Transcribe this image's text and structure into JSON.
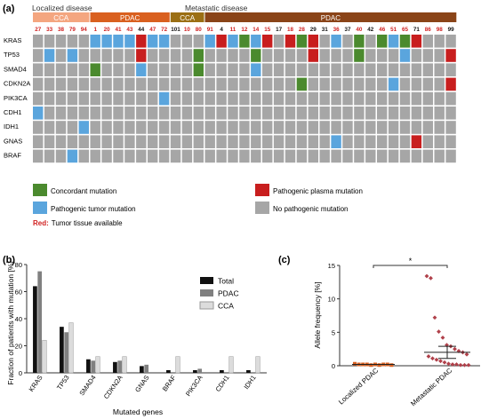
{
  "panel_a": {
    "label": "(a)",
    "group_labels": {
      "localized": "Localized disease",
      "metastatic": "Metastatic disease"
    },
    "cohorts": [
      {
        "name": "CCA",
        "color": "#f4a680",
        "start": 0,
        "end": 5
      },
      {
        "name": "PDAC",
        "color": "#d9601f",
        "start": 5,
        "end": 12
      },
      {
        "name": "CCA",
        "color": "#9b6f14",
        "start": 12,
        "end": 15
      },
      {
        "name": "PDAC",
        "color": "#8a4418",
        "start": 15,
        "end": 40
      }
    ],
    "patients": [
      {
        "id": "27",
        "red": true
      },
      {
        "id": "33",
        "red": true
      },
      {
        "id": "38",
        "red": true
      },
      {
        "id": "79",
        "red": true
      },
      {
        "id": "94",
        "red": true
      },
      {
        "id": "1",
        "red": true
      },
      {
        "id": "20",
        "red": true
      },
      {
        "id": "41",
        "red": true
      },
      {
        "id": "43",
        "red": true
      },
      {
        "id": "44",
        "red": false
      },
      {
        "id": "47",
        "red": true
      },
      {
        "id": "72",
        "red": true
      },
      {
        "id": "101",
        "red": false
      },
      {
        "id": "10",
        "red": true
      },
      {
        "id": "80",
        "red": true
      },
      {
        "id": "91",
        "red": true
      },
      {
        "id": "4",
        "red": false
      },
      {
        "id": "11",
        "red": true
      },
      {
        "id": "12",
        "red": true
      },
      {
        "id": "14",
        "red": true
      },
      {
        "id": "15",
        "red": true
      },
      {
        "id": "17",
        "red": false
      },
      {
        "id": "18",
        "red": true
      },
      {
        "id": "28",
        "red": true
      },
      {
        "id": "29",
        "red": false
      },
      {
        "id": "31",
        "red": false
      },
      {
        "id": "36",
        "red": true
      },
      {
        "id": "37",
        "red": false
      },
      {
        "id": "40",
        "red": true
      },
      {
        "id": "42",
        "red": false
      },
      {
        "id": "46",
        "red": true
      },
      {
        "id": "51",
        "red": true
      },
      {
        "id": "65",
        "red": true
      },
      {
        "id": "71",
        "red": false
      },
      {
        "id": "86",
        "red": true
      },
      {
        "id": "98",
        "red": true
      },
      {
        "id": "99",
        "red": false
      }
    ],
    "genes": [
      "KRAS",
      "TP53",
      "SMAD4",
      "CDKN2A",
      "PIK3CA",
      "CDH1",
      "IDH1",
      "GNAS",
      "BRAF"
    ],
    "mutations": [
      {
        "gene": 0,
        "col": 5,
        "type": "T"
      },
      {
        "gene": 0,
        "col": 6,
        "type": "T"
      },
      {
        "gene": 0,
        "col": 7,
        "type": "T"
      },
      {
        "gene": 0,
        "col": 8,
        "type": "T"
      },
      {
        "gene": 0,
        "col": 9,
        "type": "P"
      },
      {
        "gene": 0,
        "col": 10,
        "type": "T"
      },
      {
        "gene": 0,
        "col": 11,
        "type": "T"
      },
      {
        "gene": 0,
        "col": 15,
        "type": "T"
      },
      {
        "gene": 0,
        "col": 16,
        "type": "P"
      },
      {
        "gene": 0,
        "col": 17,
        "type": "T"
      },
      {
        "gene": 0,
        "col": 18,
        "type": "C"
      },
      {
        "gene": 0,
        "col": 19,
        "type": "T"
      },
      {
        "gene": 0,
        "col": 20,
        "type": "P"
      },
      {
        "gene": 0,
        "col": 22,
        "type": "P"
      },
      {
        "gene": 0,
        "col": 23,
        "type": "C"
      },
      {
        "gene": 0,
        "col": 24,
        "type": "P"
      },
      {
        "gene": 0,
        "col": 26,
        "type": "T"
      },
      {
        "gene": 0,
        "col": 28,
        "type": "C"
      },
      {
        "gene": 0,
        "col": 30,
        "type": "C"
      },
      {
        "gene": 0,
        "col": 31,
        "type": "T"
      },
      {
        "gene": 0,
        "col": 32,
        "type": "C"
      },
      {
        "gene": 0,
        "col": 33,
        "type": "P"
      },
      {
        "gene": 1,
        "col": 1,
        "type": "T"
      },
      {
        "gene": 1,
        "col": 3,
        "type": "T"
      },
      {
        "gene": 1,
        "col": 9,
        "type": "P"
      },
      {
        "gene": 1,
        "col": 14,
        "type": "C"
      },
      {
        "gene": 1,
        "col": 19,
        "type": "C"
      },
      {
        "gene": 1,
        "col": 24,
        "type": "P"
      },
      {
        "gene": 1,
        "col": 28,
        "type": "C"
      },
      {
        "gene": 1,
        "col": 32,
        "type": "T"
      },
      {
        "gene": 1,
        "col": 36,
        "type": "P"
      },
      {
        "gene": 2,
        "col": 5,
        "type": "C"
      },
      {
        "gene": 2,
        "col": 9,
        "type": "T"
      },
      {
        "gene": 2,
        "col": 14,
        "type": "C"
      },
      {
        "gene": 2,
        "col": 19,
        "type": "T"
      },
      {
        "gene": 3,
        "col": 23,
        "type": "C"
      },
      {
        "gene": 3,
        "col": 31,
        "type": "T"
      },
      {
        "gene": 3,
        "col": 36,
        "type": "P"
      },
      {
        "gene": 4,
        "col": 11,
        "type": "T"
      },
      {
        "gene": 5,
        "col": 0,
        "type": "T"
      },
      {
        "gene": 6,
        "col": 4,
        "type": "T"
      },
      {
        "gene": 7,
        "col": 26,
        "type": "T"
      },
      {
        "gene": 7,
        "col": 33,
        "type": "P"
      },
      {
        "gene": 8,
        "col": 3,
        "type": "T"
      }
    ],
    "legend": {
      "concordant": {
        "label": "Concordant mutation",
        "color": "#4b8a2e"
      },
      "tumor": {
        "label": "Pathogenic tumor mutation",
        "color": "#5aa5dd"
      },
      "plasma": {
        "label": "Pathogenic plasma mutation",
        "color": "#c81e1e"
      },
      "none": {
        "label": "No pathogenic mutation",
        "color": "#a6a6a6"
      },
      "red_note_prefix": "Red:",
      "red_note_text": "Tumor tissue available"
    }
  },
  "panel_b": {
    "label": "(b)",
    "chart_data": {
      "type": "bar",
      "categories": [
        "KRAS",
        "TP53",
        "SMAD4",
        "CDKN2A",
        "GNAS",
        "BRAF",
        "PIK3CA",
        "CDH1",
        "IDH1"
      ],
      "series": [
        {
          "name": "Total",
          "color": "#111111",
          "values": [
            64,
            34,
            10,
            8,
            5,
            2,
            2,
            2,
            2
          ]
        },
        {
          "name": "PDAC",
          "color": "#808080",
          "values": [
            75,
            30,
            9,
            9,
            6,
            0,
            3,
            0,
            0
          ]
        },
        {
          "name": "CCA",
          "color": "#dcdcdc",
          "values": [
            24,
            37,
            12,
            12,
            0,
            12,
            0,
            12,
            12
          ]
        }
      ],
      "ylabel": "Fraction of patients with mutation [%]",
      "xlabel": "Mutated genes",
      "ylim": [
        0,
        80
      ],
      "yticks": [
        "0",
        "20",
        "40",
        "60",
        "80"
      ],
      "legend": "top-right"
    }
  },
  "panel_c": {
    "label": "(c)",
    "chart_data": {
      "type": "scatter",
      "categories": [
        "Localized PDAC",
        "Metastatic PDAC"
      ],
      "ylabel": "Allele frequency [%]",
      "ylim": [
        0,
        15
      ],
      "yticks": [
        "0",
        "5",
        "10",
        "15"
      ],
      "significance": "*",
      "localized_color": "#d9601f",
      "metastatic_color": "#b0404a",
      "localized_values": [
        0.3,
        0.2,
        0.2,
        0.2,
        0.1,
        0.2,
        0.1,
        0.2,
        0.2,
        0.1
      ],
      "metastatic_values": [
        13.4,
        13.1,
        7.2,
        5.1,
        4.2,
        3.1,
        2.9,
        2.5,
        2.2,
        2.0,
        1.7,
        1.4,
        1.1,
        0.9,
        0.7,
        0.5,
        0.3,
        0.2,
        0.2,
        0.1,
        0.1,
        0.1
      ],
      "mean": 2.0,
      "sem": [
        1.1,
        2.9
      ]
    }
  }
}
